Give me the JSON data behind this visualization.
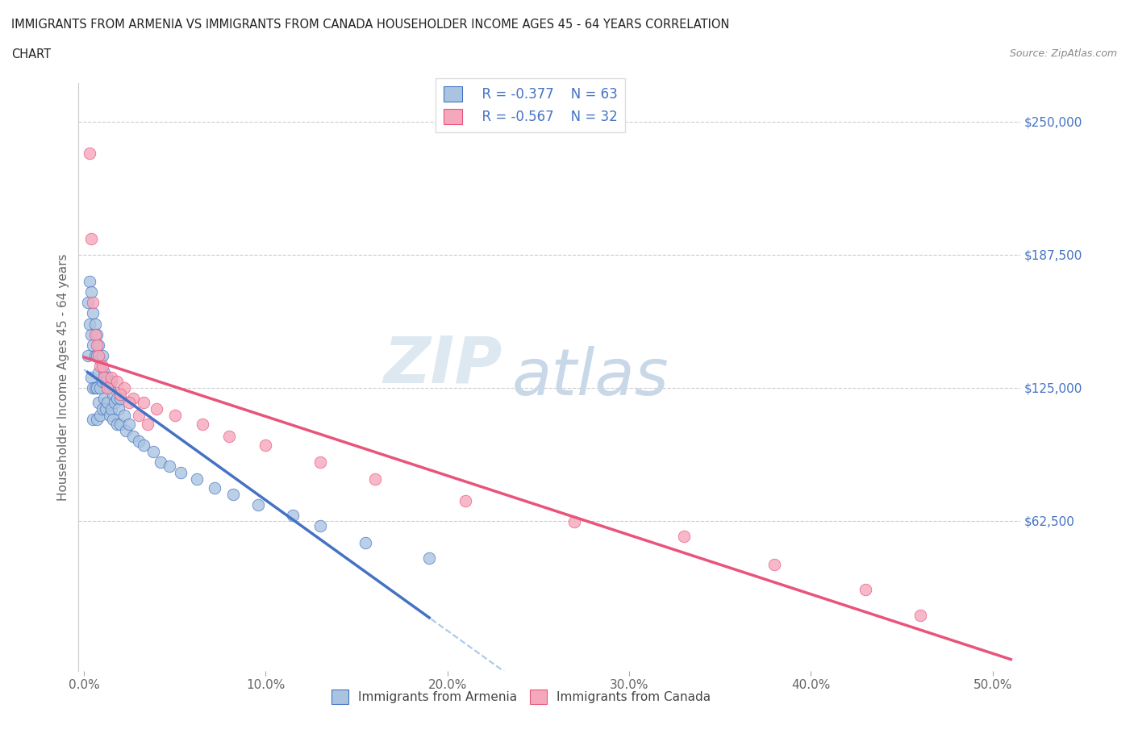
{
  "title_line1": "IMMIGRANTS FROM ARMENIA VS IMMIGRANTS FROM CANADA HOUSEHOLDER INCOME AGES 45 - 64 YEARS CORRELATION",
  "title_line2": "CHART",
  "source_text": "Source: ZipAtlas.com",
  "ylabel": "Householder Income Ages 45 - 64 years",
  "xlabel_ticks": [
    "0.0%",
    "10.0%",
    "20.0%",
    "30.0%",
    "40.0%",
    "50.0%"
  ],
  "ytick_labels": [
    "$62,500",
    "$125,000",
    "$187,500",
    "$250,000"
  ],
  "ytick_values": [
    62500,
    125000,
    187500,
    250000
  ],
  "xlim": [
    -0.003,
    0.515
  ],
  "ylim": [
    -8000,
    268000
  ],
  "legend_r_armenia": "R = -0.377",
  "legend_n_armenia": "N = 63",
  "legend_r_canada": "R = -0.567",
  "legend_n_canada": "N = 32",
  "armenia_color": "#aac4e0",
  "canada_color": "#f5a8bc",
  "armenia_line_color": "#4472c4",
  "canada_line_color": "#e8547a",
  "dashed_line_color": "#aac8e8",
  "watermark_zip": "ZIP",
  "watermark_atlas": "atlas",
  "armenia_x": [
    0.002,
    0.002,
    0.003,
    0.003,
    0.004,
    0.004,
    0.004,
    0.005,
    0.005,
    0.005,
    0.005,
    0.006,
    0.006,
    0.006,
    0.007,
    0.007,
    0.007,
    0.007,
    0.008,
    0.008,
    0.008,
    0.009,
    0.009,
    0.009,
    0.01,
    0.01,
    0.01,
    0.011,
    0.011,
    0.012,
    0.012,
    0.013,
    0.013,
    0.014,
    0.014,
    0.015,
    0.015,
    0.016,
    0.016,
    0.017,
    0.018,
    0.018,
    0.019,
    0.02,
    0.02,
    0.022,
    0.023,
    0.025,
    0.027,
    0.03,
    0.033,
    0.038,
    0.042,
    0.047,
    0.053,
    0.062,
    0.072,
    0.082,
    0.096,
    0.115,
    0.13,
    0.155,
    0.19
  ],
  "armenia_y": [
    165000,
    140000,
    175000,
    155000,
    170000,
    150000,
    130000,
    160000,
    145000,
    125000,
    110000,
    155000,
    140000,
    125000,
    150000,
    140000,
    125000,
    110000,
    145000,
    132000,
    118000,
    138000,
    125000,
    112000,
    140000,
    128000,
    115000,
    132000,
    120000,
    128000,
    115000,
    130000,
    118000,
    125000,
    112000,
    128000,
    115000,
    122000,
    110000,
    118000,
    120000,
    108000,
    115000,
    120000,
    108000,
    112000,
    105000,
    108000,
    102000,
    100000,
    98000,
    95000,
    90000,
    88000,
    85000,
    82000,
    78000,
    75000,
    70000,
    65000,
    60000,
    52000,
    45000
  ],
  "canada_x": [
    0.003,
    0.004,
    0.005,
    0.006,
    0.007,
    0.008,
    0.009,
    0.01,
    0.011,
    0.013,
    0.015,
    0.018,
    0.022,
    0.027,
    0.033,
    0.04,
    0.05,
    0.065,
    0.08,
    0.1,
    0.13,
    0.16,
    0.21,
    0.27,
    0.33,
    0.38,
    0.43,
    0.46,
    0.02,
    0.025,
    0.03,
    0.035
  ],
  "canada_y": [
    235000,
    195000,
    165000,
    150000,
    145000,
    140000,
    135000,
    135000,
    130000,
    125000,
    130000,
    128000,
    125000,
    120000,
    118000,
    115000,
    112000,
    108000,
    102000,
    98000,
    90000,
    82000,
    72000,
    62000,
    55000,
    42000,
    30000,
    18000,
    122000,
    118000,
    112000,
    108000
  ]
}
